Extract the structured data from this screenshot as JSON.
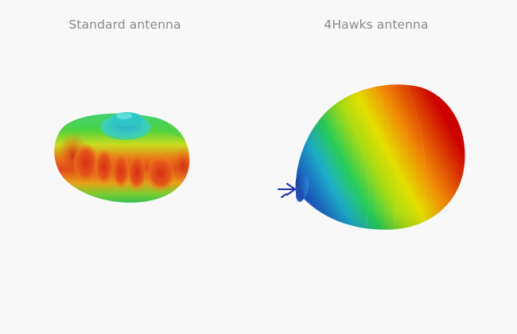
{
  "panels": {
    "left": {
      "caption": "Standard antenna"
    },
    "right": {
      "caption": "4Hawks antenna"
    }
  },
  "colors": {
    "background": "#f8f8f8",
    "caption_text": "#8a8a8a",
    "heatmap_low": "#1f6fd6",
    "heatmap_mid": "#d8e000",
    "heatmap_high": "#d40000",
    "arrow": "#1a2fb0"
  }
}
